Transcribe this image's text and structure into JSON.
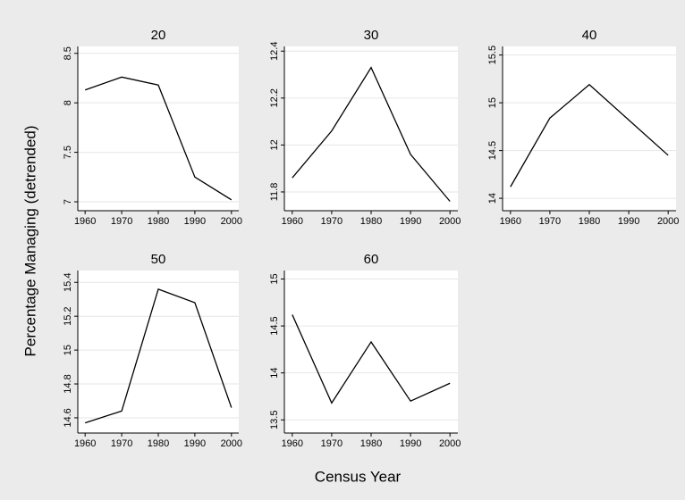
{
  "chart_data": [
    {
      "type": "line",
      "title": "20",
      "x": [
        1960,
        1970,
        1980,
        1990,
        2000
      ],
      "values": [
        8.13,
        8.26,
        8.18,
        7.25,
        7.02
      ],
      "color": "#000000",
      "xlim": [
        1958,
        2002
      ],
      "ylim": [
        6.91,
        8.57
      ],
      "xticks": [
        1960,
        1970,
        1980,
        1990,
        2000
      ],
      "yticks": [
        7,
        7.5,
        8,
        8.5
      ],
      "grid": true
    },
    {
      "type": "line",
      "title": "30",
      "x": [
        1960,
        1970,
        1980,
        1990,
        2000
      ],
      "values": [
        11.86,
        12.06,
        12.33,
        11.96,
        11.76
      ],
      "color": "#000000",
      "xlim": [
        1958,
        2002
      ],
      "ylim": [
        11.72,
        12.42
      ],
      "xticks": [
        1960,
        1970,
        1980,
        1990,
        2000
      ],
      "yticks": [
        11.8,
        12,
        12.2,
        12.4
      ],
      "grid": true
    },
    {
      "type": "line",
      "title": "40",
      "x": [
        1960,
        1970,
        1980,
        1990,
        2000
      ],
      "values": [
        14.12,
        14.84,
        15.19,
        14.82,
        14.45
      ],
      "color": "#000000",
      "xlim": [
        1958,
        2002
      ],
      "ylim": [
        13.87,
        15.59
      ],
      "xticks": [
        1960,
        1970,
        1980,
        1990,
        2000
      ],
      "yticks": [
        14,
        14.5,
        15,
        15.5
      ],
      "grid": true
    },
    {
      "type": "line",
      "title": "50",
      "x": [
        1960,
        1970,
        1980,
        1990,
        2000
      ],
      "values": [
        14.57,
        14.64,
        15.36,
        15.28,
        14.66
      ],
      "color": "#000000",
      "xlim": [
        1958,
        2002
      ],
      "ylim": [
        14.51,
        15.47
      ],
      "xticks": [
        1960,
        1970,
        1980,
        1990,
        2000
      ],
      "yticks": [
        14.6,
        14.8,
        15,
        15.2,
        15.4
      ],
      "grid": true
    },
    {
      "type": "line",
      "title": "60",
      "x": [
        1960,
        1970,
        1980,
        1990,
        2000
      ],
      "values": [
        14.62,
        13.68,
        14.33,
        13.7,
        13.89
      ],
      "color": "#000000",
      "xlim": [
        1958,
        2002
      ],
      "ylim": [
        13.36,
        15.09
      ],
      "xticks": [
        1960,
        1970,
        1980,
        1990,
        2000
      ],
      "yticks": [
        13.5,
        14,
        14.5,
        15
      ],
      "grid": true
    }
  ],
  "y_label": "Percentage Managing (detrended)",
  "x_label": "Census Year"
}
